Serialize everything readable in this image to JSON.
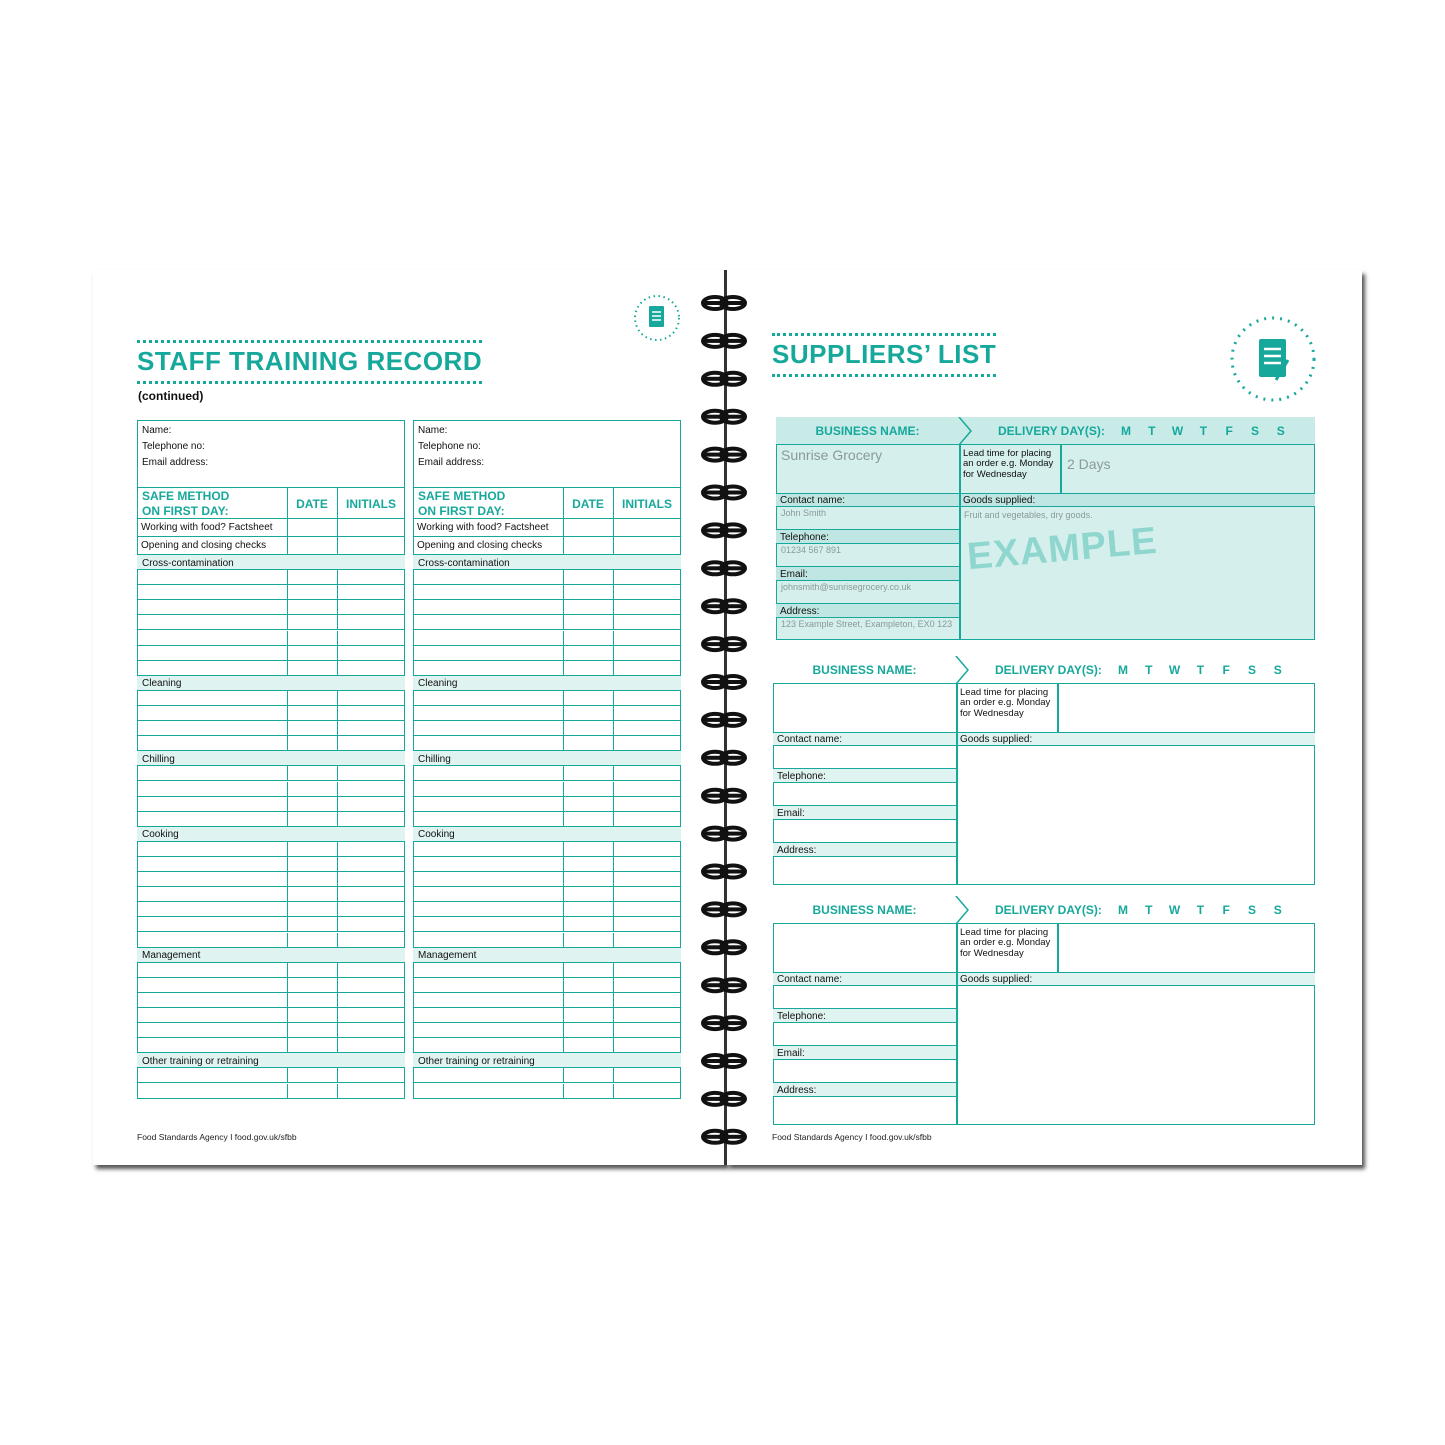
{
  "left_page": {
    "title": "STAFF TRAINING RECORD",
    "subtitle": "(continued)",
    "footer": "Food Standards Agency I food.gov.uk/sfbb",
    "forms": [
      {
        "contact_labels": [
          "Name:",
          "Telephone no:",
          "Email address:"
        ],
        "columns": [
          "SAFE METHOD ON FIRST DAY:",
          "DATE",
          "INITIALS"
        ],
        "items": [
          "Working with food? Factsheet",
          "Opening and closing checks"
        ],
        "sections": [
          "Cross-contamination",
          "Cleaning",
          "Chilling",
          "Cooking",
          "Management",
          "Other training or retraining"
        ]
      },
      {
        "contact_labels": [
          "Name:",
          "Telephone no:",
          "Email address:"
        ],
        "columns": [
          "SAFE METHOD ON FIRST DAY:",
          "DATE",
          "INITIALS"
        ],
        "items": [
          "Working with food? Factsheet",
          "Opening and closing checks"
        ],
        "sections": [
          "Cross-contamination",
          "Cleaning",
          "Chilling",
          "Cooking",
          "Management",
          "Other training or retraining"
        ]
      }
    ]
  },
  "right_page": {
    "title": "SUPPLIERS’ LIST",
    "footer": "Food Standards Agency I food.gov.uk/sfbb",
    "suppliers": [
      {
        "business_name_label": "BUSINESS NAME:",
        "delivery_days_label": "DELIVERY DAY(S):",
        "days": [
          "M",
          "T",
          "W",
          "T",
          "F",
          "S",
          "S"
        ],
        "lead_time_label": "Lead time for placing an order e.g. Monday for Wednesday",
        "contact_label": "Contact name:",
        "telephone_label": "Telephone:",
        "email_label": "Email:",
        "address_label": "Address:",
        "goods_label": "Goods supplied:",
        "business_name": "Sunrise Grocery",
        "lead_time": "2 Days",
        "contact": "John Smith",
        "telephone": "01234 567 891",
        "email": "johnsmith@sunrisegrocery.co.uk",
        "address": "123 Example Street, Exampleton, EX0 123",
        "goods": "Fruit and vegetables, dry goods.",
        "stamp": "EXAMPLE"
      },
      {
        "business_name_label": "BUSINESS NAME:",
        "delivery_days_label": "DELIVERY DAY(S):",
        "days": [
          "M",
          "T",
          "W",
          "T",
          "F",
          "S",
          "S"
        ],
        "lead_time_label": "Lead time for placing an order e.g. Monday for Wednesday",
        "contact_label": "Contact name:",
        "telephone_label": "Telephone:",
        "email_label": "Email:",
        "address_label": "Address:",
        "goods_label": "Goods supplied:"
      },
      {
        "business_name_label": "BUSINESS NAME:",
        "delivery_days_label": "DELIVERY DAY(S):",
        "days": [
          "M",
          "T",
          "W",
          "T",
          "F",
          "S",
          "S"
        ],
        "lead_time_label": "Lead time for placing an order e.g. Monday for Wednesday",
        "contact_label": "Contact name:",
        "telephone_label": "Telephone:",
        "email_label": "Email:",
        "address_label": "Address:",
        "goods_label": "Goods supplied:"
      }
    ]
  }
}
